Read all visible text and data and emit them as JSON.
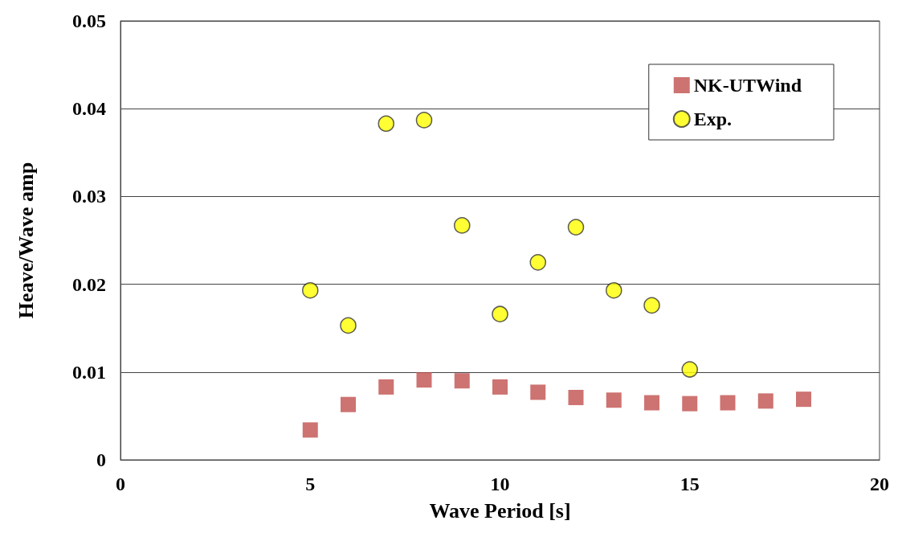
{
  "chart_data": {
    "type": "scatter",
    "xlabel": "Wave Period [s]",
    "ylabel": "Heave/Wave amp",
    "xlim": [
      0,
      20
    ],
    "xticks": [
      0,
      5,
      10,
      15,
      20
    ],
    "ylim": [
      0,
      0.05
    ],
    "yticks": [
      0,
      0.01,
      0.02,
      0.03,
      0.04,
      0.05
    ],
    "grid": "y",
    "legend": "top right",
    "series": [
      {
        "name": "NK-UTWind",
        "color": "#c0504d",
        "marker": "square",
        "x": [
          5,
          6,
          7,
          8,
          9,
          10,
          11,
          12,
          13,
          14,
          15,
          16,
          17,
          18
        ],
        "values": [
          0.0034,
          0.0063,
          0.0083,
          0.0091,
          0.009,
          0.0083,
          0.0077,
          0.0071,
          0.0068,
          0.0065,
          0.0064,
          0.0065,
          0.0067,
          0.0069
        ]
      },
      {
        "name": "Exp.",
        "color": "#ffff00",
        "marker": "circle",
        "x": [
          5,
          6,
          7,
          8,
          9,
          10,
          11,
          12,
          13,
          14,
          15
        ],
        "values": [
          0.0193,
          0.0153,
          0.0383,
          0.0387,
          0.0267,
          0.0166,
          0.0225,
          0.0265,
          0.0193,
          0.0176,
          0.0103
        ]
      }
    ]
  }
}
